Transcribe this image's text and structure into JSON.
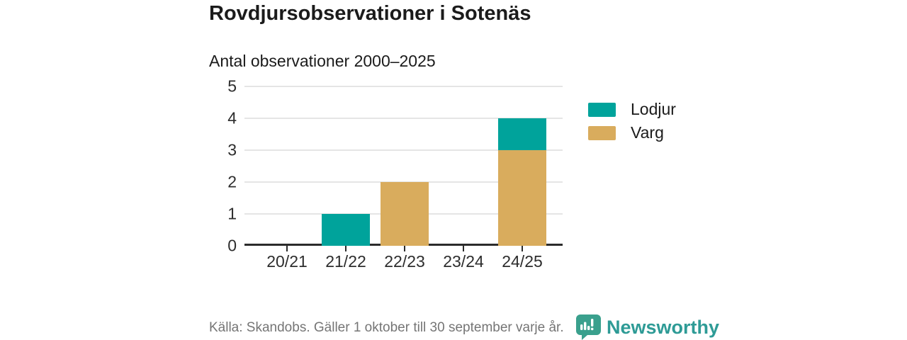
{
  "header": {
    "title": "Rovdjursobservationer i Sotenäs"
  },
  "chart_data": {
    "type": "bar",
    "stacked": true,
    "title": "Antal observationer 2000–2025",
    "categories": [
      "20/21",
      "21/22",
      "22/23",
      "23/24",
      "24/25"
    ],
    "series": [
      {
        "name": "Lodjur",
        "color": "#00A39B",
        "values": [
          0,
          1,
          0,
          0,
          1
        ]
      },
      {
        "name": "Varg",
        "color": "#D9AC5D",
        "values": [
          0,
          0,
          2,
          0,
          3
        ]
      }
    ],
    "stack_bottom_to_top": [
      "Varg",
      "Lodjur"
    ],
    "ylim": [
      0,
      5
    ],
    "yticks": [
      0,
      1,
      2,
      3,
      4,
      5
    ],
    "grid": true,
    "legend_position": "right"
  },
  "footer": {
    "source": "Källa: Skandobs. Gäller 1 oktober till 30 september varje år.",
    "brand": "Newsworthy"
  },
  "colors": {
    "lodjur": "#00A39B",
    "varg": "#D9AC5D",
    "brand_teal": "#2E9B96",
    "text_dark": "#1B1B1B",
    "text_gray": "#757575",
    "axis_dark": "#2B2B2B",
    "gridline": "#E5E5E5"
  }
}
